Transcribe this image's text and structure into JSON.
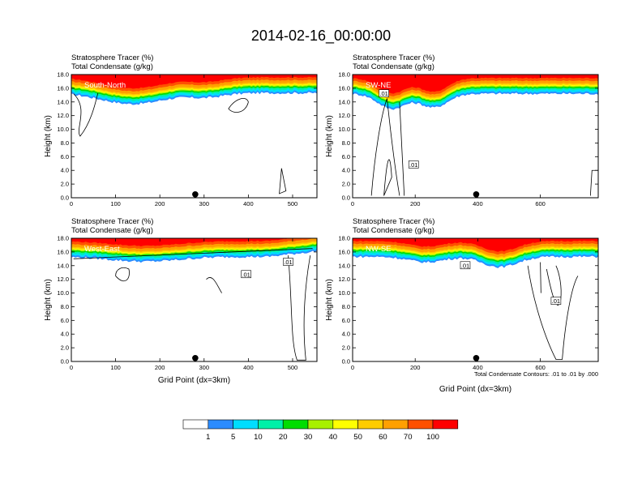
{
  "title": "2014-02-16_00:00:00",
  "footnote": "Total Condensate Contours: .01 to .01 by .000",
  "colorbar": {
    "colors": [
      "#ffffff",
      "#2b8cff",
      "#00ddff",
      "#00f0a8",
      "#00dd00",
      "#a8f000",
      "#ffff00",
      "#ffcc00",
      "#ffa000",
      "#ff5000",
      "#ff0000"
    ],
    "labels": [
      "1",
      "5",
      "10",
      "20",
      "30",
      "40",
      "50",
      "60",
      "70",
      "100"
    ]
  },
  "chart_data": [
    {
      "type": "heatmap",
      "label_line1": "Stratosphere Tracer   (%)",
      "label_line2": "Total Condensate   (g/kg)",
      "panel_label": "South-North",
      "ylabel": "Height (km)",
      "xlabel": "",
      "xlim": [
        0,
        555
      ],
      "ylim": [
        0,
        18
      ],
      "x_ticks": [
        "0",
        "100",
        "200",
        "300",
        "400",
        "500"
      ],
      "y_ticks": [
        "0.0",
        "2.0",
        "4.0",
        "6.0",
        "8.0",
        "10.0",
        "12.0",
        "14.0",
        "16.0",
        "18.0"
      ],
      "marker_x": 280,
      "contour_labels": []
    },
    {
      "type": "heatmap",
      "label_line1": "Stratosphere Tracer   (%)",
      "label_line2": "Total Condensate   (g/kg)",
      "panel_label": "SW-NE",
      "ylabel": "Height (km)",
      "xlabel": "",
      "xlim": [
        0,
        785
      ],
      "ylim": [
        0,
        18
      ],
      "x_ticks": [
        "0",
        "200",
        "400",
        "600"
      ],
      "y_ticks": [
        "0.0",
        "2.0",
        "4.0",
        "6.0",
        "8.0",
        "10.0",
        "12.0",
        "14.0",
        "16.0",
        "18.0"
      ],
      "marker_x": 395,
      "contour_labels": [
        ".01",
        ".01"
      ]
    },
    {
      "type": "heatmap",
      "label_line1": "Stratosphere Tracer   (%)",
      "label_line2": "Total Condensate   (g/kg)",
      "panel_label": "West-East",
      "ylabel": "Height (km)",
      "xlabel": "Grid Point (dx=3km)",
      "xlim": [
        0,
        555
      ],
      "ylim": [
        0,
        18
      ],
      "x_ticks": [
        "0",
        "100",
        "200",
        "300",
        "400",
        "500"
      ],
      "y_ticks": [
        "0.0",
        "2.0",
        "4.0",
        "6.0",
        "8.0",
        "10.0",
        "12.0",
        "14.0",
        "16.0",
        "18.0"
      ],
      "marker_x": 280,
      "contour_labels": [
        ".01",
        ".01"
      ]
    },
    {
      "type": "heatmap",
      "label_line1": "Stratosphere Tracer   (%)",
      "label_line2": "Total Condensate   (g/kg)",
      "panel_label": "NW-SE",
      "ylabel": "Height (km)",
      "xlabel": "Grid Point (dx=3km)",
      "xlim": [
        0,
        785
      ],
      "ylim": [
        0,
        18
      ],
      "x_ticks": [
        "0",
        "200",
        "400",
        "600"
      ],
      "y_ticks": [
        "0.0",
        "2.0",
        "4.0",
        "6.0",
        "8.0",
        "10.0",
        "12.0",
        "14.0",
        "16.0",
        "18.0"
      ],
      "marker_x": 395,
      "contour_labels": [
        ".01",
        ".01"
      ]
    }
  ]
}
